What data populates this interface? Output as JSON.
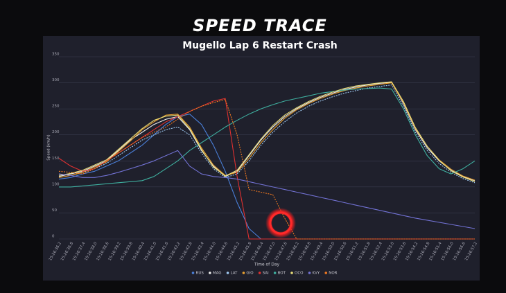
{
  "chart_data": {
    "type": "line",
    "title": "SPEED TRACE",
    "subtitle": "Mugello Lap 6 Restart Crash",
    "y_label": "Speed (km/h)",
    "x_label": "Time of Day",
    "ylim": [
      0,
      350
    ],
    "yticks": [
      0,
      50,
      100,
      150,
      200,
      250,
      300,
      350
    ],
    "grid": true,
    "legend": "bottom",
    "categories": [
      "15:26:36.2",
      "15:26:36.8",
      "15:26:37.4",
      "15:26:38.0",
      "15:26:38.6",
      "15:26:39.2",
      "15:26:39.8",
      "15:26:40.4",
      "15:26:41.0",
      "15:26:41.6",
      "15:26:42.2",
      "15:26:42.8",
      "15:26:43.4",
      "15:26:44.0",
      "15:26:44.6",
      "15:26:45.2",
      "15:26:45.8",
      "15:26:46.4",
      "15:26:47.0",
      "15:26:47.6",
      "15:26:48.2",
      "15:26:48.8",
      "15:26:49.4",
      "15:26:50.0",
      "15:26:50.6",
      "15:26:51.2",
      "15:26:51.8",
      "15:26:52.4",
      "15:26:53.0",
      "15:26:53.6",
      "15:26:54.2",
      "15:26:54.8",
      "15:26:55.4",
      "15:26:56.0",
      "15:26:56.6",
      "15:26:57.2"
    ],
    "series": [
      {
        "name": "RUS",
        "color": "#4a7fd8",
        "dashed": false,
        "values": [
          115,
          118,
          125,
          130,
          140,
          150,
          165,
          180,
          200,
          220,
          235,
          240,
          220,
          180,
          130,
          70,
          20,
          0,
          0,
          0,
          0,
          0,
          0,
          0,
          0,
          0,
          0,
          0,
          0,
          0,
          0,
          0,
          0,
          0,
          0,
          0
        ]
      },
      {
        "name": "MAG",
        "color": "#ececec",
        "dashed": false,
        "values": [
          120,
          125,
          130,
          140,
          150,
          170,
          190,
          205,
          220,
          230,
          235,
          210,
          170,
          140,
          120,
          130,
          160,
          190,
          215,
          235,
          250,
          262,
          272,
          280,
          287,
          292,
          296,
          299,
          301,
          260,
          210,
          175,
          150,
          132,
          120,
          112
        ]
      },
      {
        "name": "LAT",
        "color": "#9ec8f0",
        "dashed": true,
        "values": [
          125,
          122,
          128,
          135,
          145,
          160,
          175,
          190,
          200,
          210,
          215,
          200,
          165,
          135,
          118,
          125,
          150,
          180,
          205,
          225,
          242,
          255,
          265,
          273,
          280,
          285,
          290,
          293,
          296,
          255,
          205,
          170,
          145,
          128,
          116,
          108
        ]
      },
      {
        "name": "GIO",
        "color": "#e8a030",
        "dashed": false,
        "values": [
          118,
          122,
          128,
          138,
          148,
          168,
          188,
          210,
          225,
          238,
          240,
          215,
          175,
          142,
          122,
          128,
          155,
          185,
          210,
          232,
          248,
          260,
          270,
          278,
          285,
          290,
          294,
          297,
          300,
          262,
          212,
          178,
          152,
          134,
          121,
          113
        ]
      },
      {
        "name": "SAI",
        "color": "#e03030",
        "dashed": false,
        "values": [
          155,
          140,
          130,
          135,
          150,
          165,
          180,
          195,
          210,
          225,
          235,
          245,
          255,
          265,
          270,
          120,
          0,
          0,
          0,
          0,
          0,
          0,
          0,
          0,
          0,
          0,
          0,
          0,
          0,
          0,
          0,
          0,
          0,
          0,
          0,
          0
        ]
      },
      {
        "name": "BOT",
        "color": "#3fb0a0",
        "dashed": false,
        "values": [
          100,
          100,
          102,
          104,
          106,
          108,
          110,
          112,
          120,
          135,
          150,
          170,
          185,
          200,
          215,
          228,
          240,
          250,
          258,
          265,
          270,
          275,
          280,
          283,
          286,
          288,
          289,
          290,
          288,
          250,
          200,
          160,
          135,
          125,
          135,
          150
        ]
      },
      {
        "name": "OCO",
        "color": "#e8dc78",
        "dashed": false,
        "values": [
          122,
          126,
          132,
          142,
          152,
          172,
          192,
          212,
          228,
          236,
          238,
          212,
          172,
          138,
          121,
          132,
          162,
          192,
          218,
          238,
          252,
          264,
          274,
          282,
          289,
          294,
          297,
          300,
          302,
          264,
          214,
          178,
          151,
          131,
          119,
          110
        ]
      },
      {
        "name": "KVY",
        "color": "#7272d4",
        "dashed": false,
        "values": [
          125,
          122,
          118,
          118,
          122,
          128,
          135,
          142,
          150,
          160,
          170,
          140,
          125,
          120,
          118,
          115,
          110,
          105,
          100,
          95,
          90,
          85,
          80,
          75,
          70,
          65,
          60,
          55,
          50,
          45,
          40,
          36,
          32,
          28,
          24,
          20
        ]
      },
      {
        "name": "NOR",
        "color": "#f07820",
        "dashed": true,
        "values": [
          130,
          128,
          125,
          135,
          150,
          165,
          180,
          195,
          205,
          215,
          230,
          245,
          255,
          262,
          268,
          200,
          95,
          90,
          85,
          40,
          0,
          0,
          0,
          0,
          0,
          0,
          0,
          0,
          0,
          0,
          0,
          0,
          0,
          0,
          0,
          0
        ]
      }
    ]
  }
}
